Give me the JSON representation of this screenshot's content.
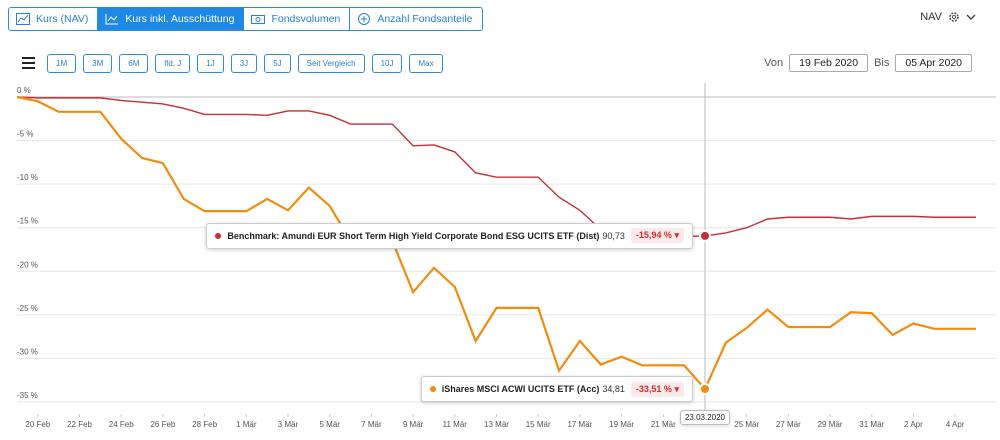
{
  "tabs": [
    "Kurs (NAV)",
    "Kurs inkl. Ausschüttung",
    "Fondsvolumen",
    "Anzahl Fondsanteile"
  ],
  "nav_label": "NAV",
  "ranges": [
    "1M",
    "3M",
    "6M",
    "lfd. J",
    "1J",
    "3J",
    "5J",
    "Seit Vergleich",
    "10J",
    "Max"
  ],
  "from_label": "Von",
  "from_date": "19 Feb 2020",
  "to_label": "Bis",
  "to_date": "05 Apr 2020",
  "chart_data": {
    "type": "line",
    "x": [
      "2020-02-19",
      "2020-02-20",
      "2020-02-21",
      "2020-02-22",
      "2020-02-23",
      "2020-02-24",
      "2020-02-25",
      "2020-02-26",
      "2020-02-27",
      "2020-02-28",
      "2020-02-29",
      "2020-03-01",
      "2020-03-02",
      "2020-03-03",
      "2020-03-04",
      "2020-03-05",
      "2020-03-06",
      "2020-03-07",
      "2020-03-08",
      "2020-03-09",
      "2020-03-10",
      "2020-03-11",
      "2020-03-12",
      "2020-03-13",
      "2020-03-14",
      "2020-03-15",
      "2020-03-16",
      "2020-03-17",
      "2020-03-18",
      "2020-03-19",
      "2020-03-20",
      "2020-03-21",
      "2020-03-22",
      "2020-03-23",
      "2020-03-24",
      "2020-03-25",
      "2020-03-26",
      "2020-03-27",
      "2020-03-28",
      "2020-03-29",
      "2020-03-30",
      "2020-03-31",
      "2020-04-01",
      "2020-04-02",
      "2020-04-03",
      "2020-04-04",
      "2020-04-05"
    ],
    "series": [
      {
        "name": "Benchmark: Amundi EUR Short Term High Yield Corporate Bond ESG UCITS ETF (Dist)",
        "color": "#c62f36",
        "values": [
          0,
          -0.1,
          -0.1,
          -0.1,
          -0.1,
          -0.4,
          -0.6,
          -0.8,
          -1.3,
          -2.0,
          -2.0,
          -2.0,
          -2.1,
          -1.6,
          -1.6,
          -2.1,
          -3.1,
          -3.1,
          -3.1,
          -5.6,
          -5.5,
          -6.3,
          -8.7,
          -9.2,
          -9.2,
          -9.2,
          -11.5,
          -13.0,
          -15.2,
          -16.0,
          -16.0,
          -16.0,
          -16.0,
          -15.94,
          -15.6,
          -15.0,
          -14.0,
          -13.8,
          -13.8,
          -13.8,
          -14.0,
          -13.7,
          -13.7,
          -13.7,
          -13.8,
          -13.8,
          -13.8
        ]
      },
      {
        "name": "iShares MSCI ACWI UCITS ETF (Acc)",
        "color": "#f28c0f",
        "values": [
          0,
          -0.5,
          -1.7,
          -1.7,
          -1.7,
          -4.8,
          -7.0,
          -7.6,
          -11.7,
          -13.1,
          -13.1,
          -13.1,
          -11.7,
          -13.0,
          -10.4,
          -12.5,
          -16.5,
          -16.5,
          -16.5,
          -22.4,
          -19.6,
          -21.8,
          -28.0,
          -24.2,
          -24.2,
          -24.2,
          -31.4,
          -28.0,
          -30.7,
          -29.8,
          -30.8,
          -30.8,
          -30.8,
          -33.51,
          -28.2,
          -26.5,
          -24.4,
          -26.4,
          -26.4,
          -26.4,
          -24.7,
          -24.8,
          -27.3,
          -26.0,
          -26.6,
          -26.6,
          -26.6
        ]
      }
    ],
    "xlim": [
      "2020-02-19",
      "2020-04-05"
    ],
    "xticks": [
      {
        "value": "2020-02-20",
        "label": "20 Feb"
      },
      {
        "value": "2020-02-22",
        "label": "22 Feb"
      },
      {
        "value": "2020-02-24",
        "label": "24 Feb"
      },
      {
        "value": "2020-02-26",
        "label": "26 Feb"
      },
      {
        "value": "2020-02-28",
        "label": "28 Feb"
      },
      {
        "value": "2020-03-01",
        "label": "1 Mär"
      },
      {
        "value": "2020-03-03",
        "label": "3 Mär"
      },
      {
        "value": "2020-03-05",
        "label": "5 Mär"
      },
      {
        "value": "2020-03-07",
        "label": "7 Mär"
      },
      {
        "value": "2020-03-09",
        "label": "9 Mär"
      },
      {
        "value": "2020-03-11",
        "label": "11 Mär"
      },
      {
        "value": "2020-03-13",
        "label": "13 Mär"
      },
      {
        "value": "2020-03-15",
        "label": "15 Mär"
      },
      {
        "value": "2020-03-17",
        "label": "17 Mär"
      },
      {
        "value": "2020-03-19",
        "label": "19 Mär"
      },
      {
        "value": "2020-03-21",
        "label": "21 Mär"
      },
      {
        "value": "2020-03-25",
        "label": "25 Mär"
      },
      {
        "value": "2020-03-27",
        "label": "27 Mär"
      },
      {
        "value": "2020-03-29",
        "label": "29 Mär"
      },
      {
        "value": "2020-03-31",
        "label": "31 Mär"
      },
      {
        "value": "2020-04-02",
        "label": "2 Apr"
      },
      {
        "value": "2020-04-04",
        "label": "4 Apr"
      }
    ],
    "ylim": [
      0,
      -35
    ],
    "yticks": [
      {
        "value": 0,
        "label": "0 %"
      },
      {
        "value": -5,
        "label": "-5 %"
      },
      {
        "value": -10,
        "label": "-10 %"
      },
      {
        "value": -15,
        "label": "-15 %"
      },
      {
        "value": -20,
        "label": "-20 %"
      },
      {
        "value": -25,
        "label": "-25 %"
      },
      {
        "value": -30,
        "label": "-30 %"
      },
      {
        "value": -35,
        "label": "-35 %"
      }
    ],
    "grid": true,
    "tooltip": {
      "date": "23.03.2020",
      "items": [
        {
          "price": "90,73",
          "change": "-15,94 %"
        },
        {
          "price": "34,81",
          "change": "-33,51 %"
        }
      ]
    }
  }
}
